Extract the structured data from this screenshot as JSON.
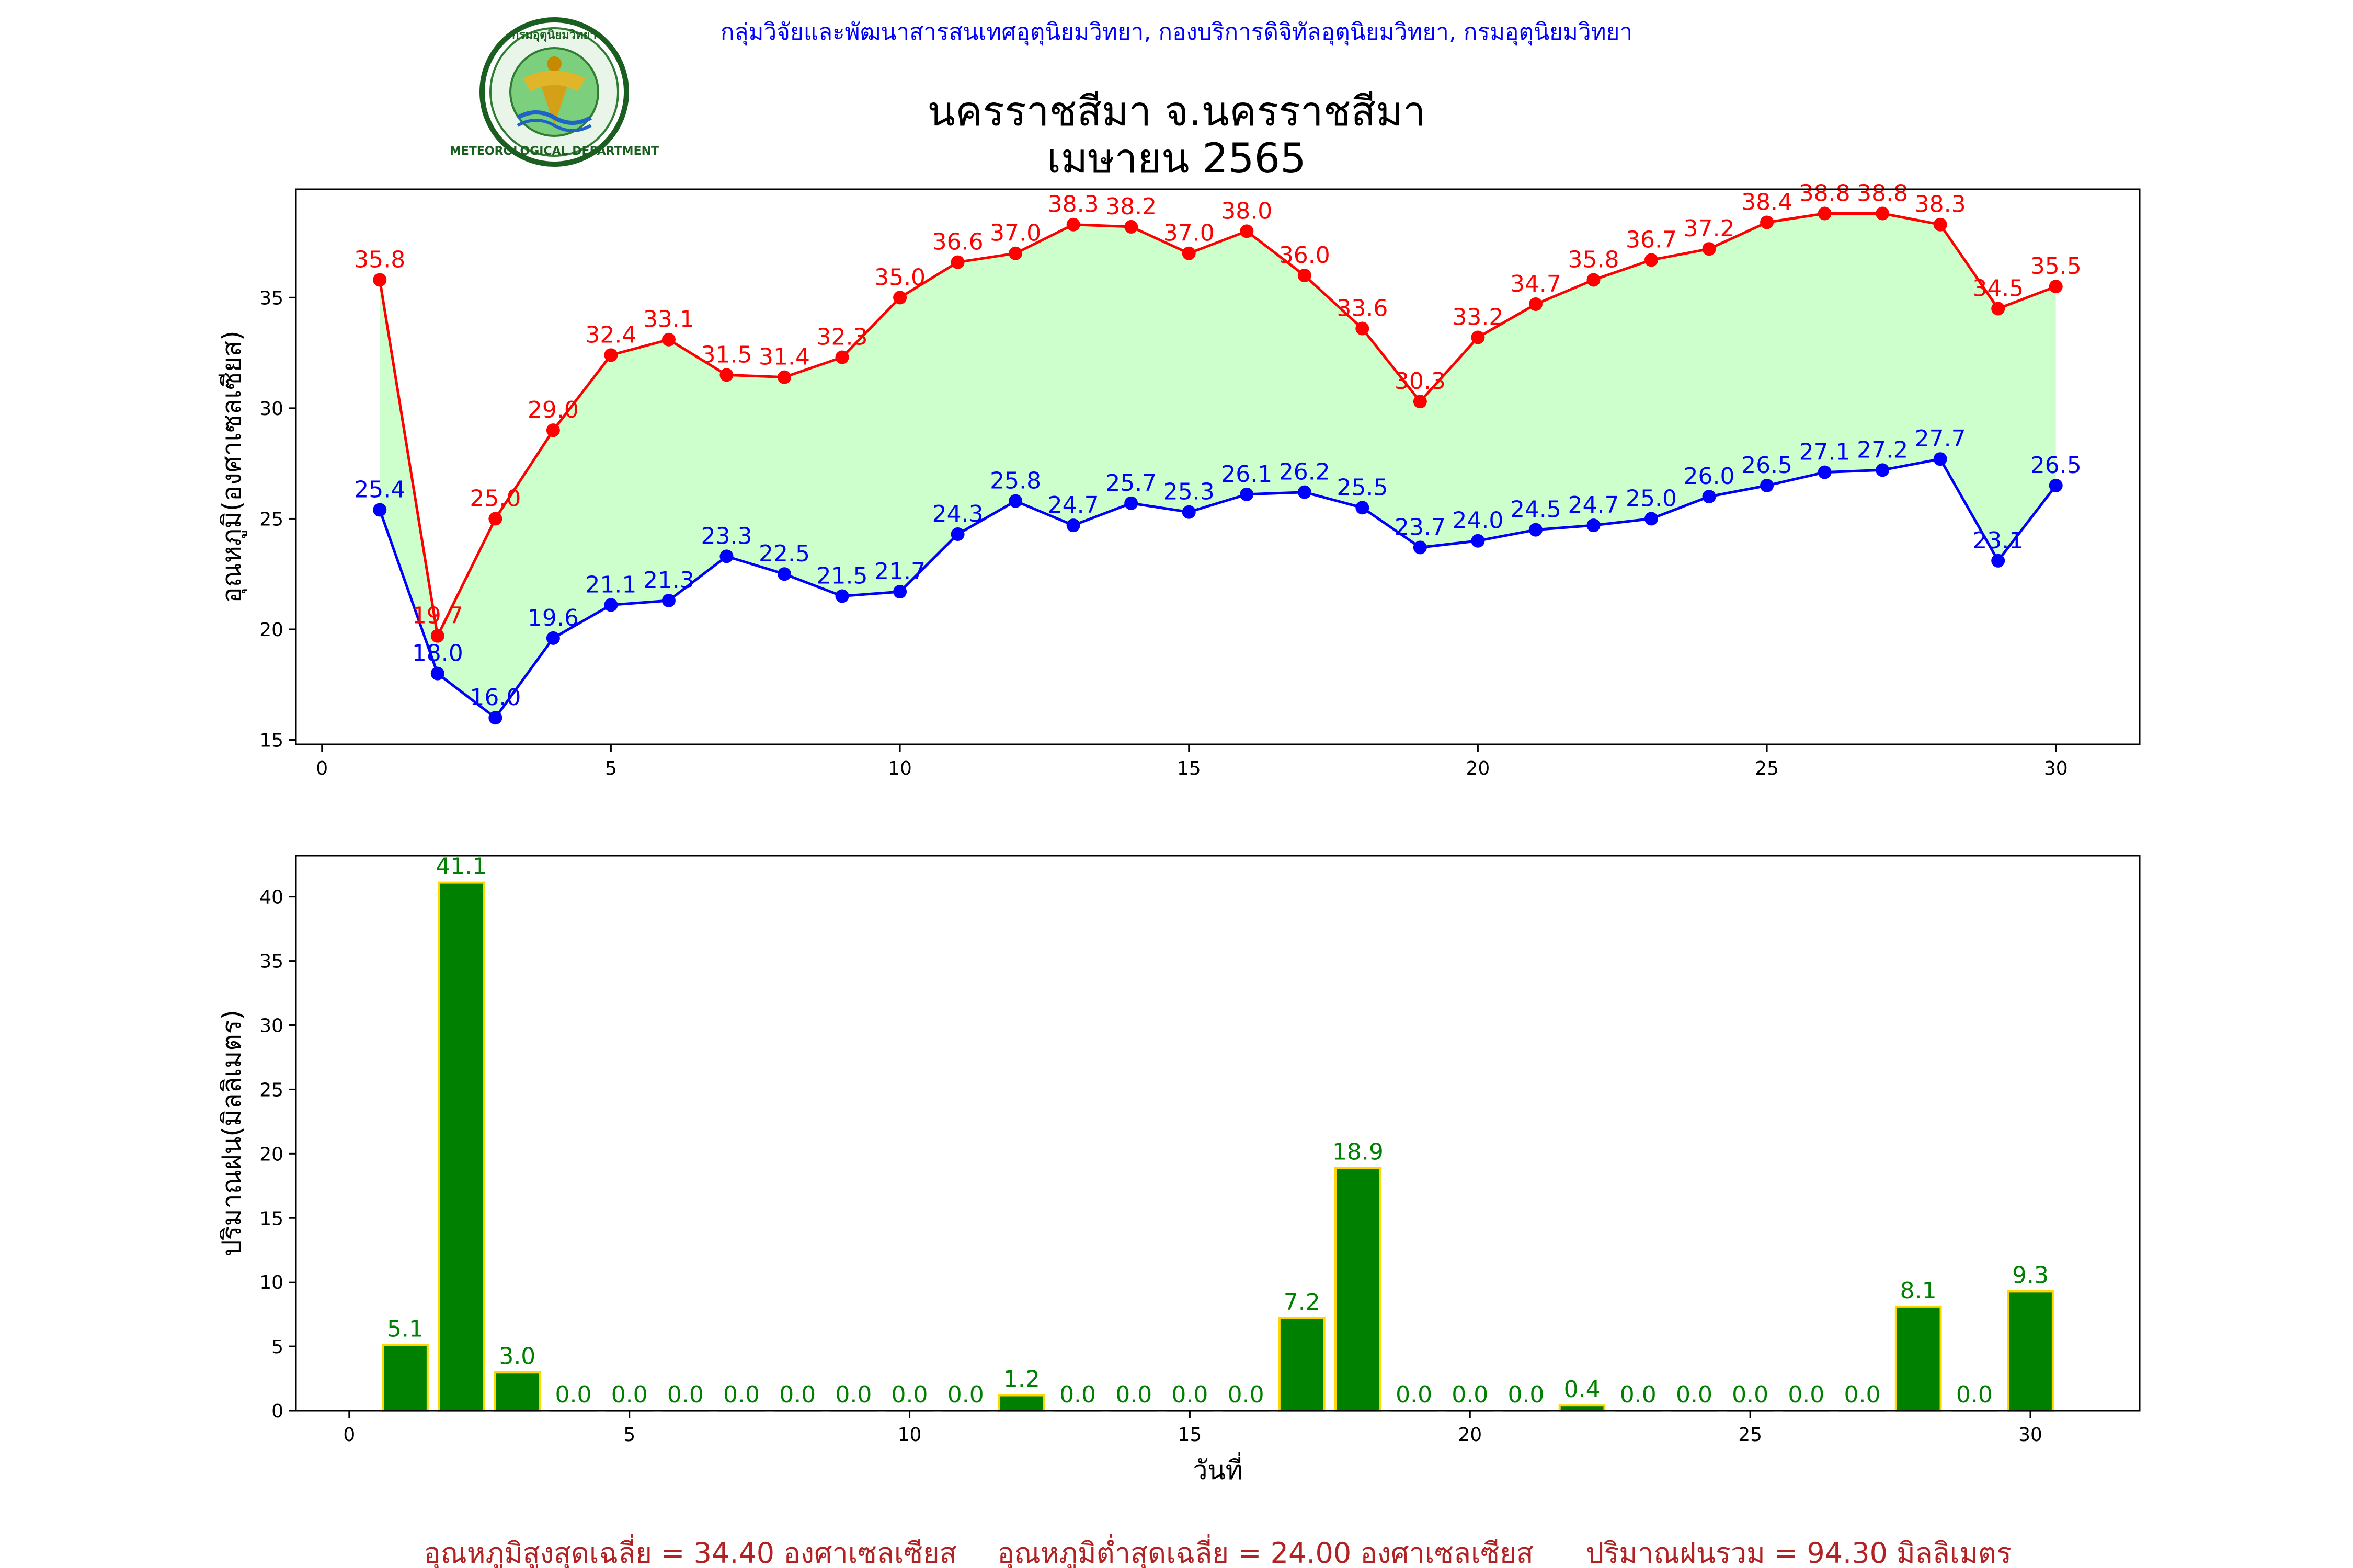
{
  "header": {
    "credit": "กลุ่มวิจัยและพัฒนาสารสนเทศอุตุนิยมวิทยา, กองบริการดิจิทัลอุตุนิยมวิทยา, กรมอุตุนิยมวิทยา",
    "logo_text_top": "กรมอุตุนิยมวิทยา",
    "logo_text_bottom": "METEOROLOGICAL DEPARTMENT",
    "title_line1": "นครราชสีมา จ.นครราชสีมา",
    "title_line2": "เมษายน 2565"
  },
  "colors": {
    "max_line": "#ff0000",
    "min_line": "#0000ff",
    "fill_between": "#ccffcc",
    "rain_bar": "#008000",
    "rain_bar_edge": "#ffd700",
    "rain_label": "#008000",
    "header_text": "#0000ff",
    "footer_text": "#b22222"
  },
  "chart_data": [
    {
      "type": "line",
      "title": "นครราชสีมา จ.นครราชสีมา เมษายน 2565",
      "xlabel": "",
      "ylabel": "อุณหภูมิ(องศาเซลเซียส)",
      "xlim": [
        -0.45,
        31.45
      ],
      "ylim": [
        14.8,
        39.9
      ],
      "xticks": [
        0,
        5,
        10,
        15,
        20,
        25,
        30
      ],
      "yticks": [
        15,
        20,
        25,
        30,
        35
      ],
      "x": [
        1,
        2,
        3,
        4,
        5,
        6,
        7,
        8,
        9,
        10,
        11,
        12,
        13,
        14,
        15,
        16,
        17,
        18,
        19,
        20,
        21,
        22,
        23,
        24,
        25,
        26,
        27,
        28,
        29,
        30
      ],
      "fill_between": true,
      "series": [
        {
          "values": [
            35.8,
            19.7,
            25.0,
            29.0,
            32.4,
            33.1,
            31.5,
            31.4,
            32.3,
            35.0,
            36.6,
            37.0,
            38.3,
            38.2,
            37.0,
            38.0,
            36.0,
            33.6,
            30.3,
            33.2,
            34.7,
            35.8,
            36.7,
            37.2,
            38.4,
            38.8,
            38.8,
            38.3,
            34.5,
            35.5
          ],
          "labels": [
            "35.8",
            "19.7",
            "25.0",
            "29.0",
            "32.4",
            "33.1",
            "31.5",
            "31.4",
            "32.3",
            "35.0",
            "36.6",
            "37.0",
            "38.3",
            "38.2",
            "37.0",
            "38.0",
            "36.0",
            "33.6",
            "30.3",
            "33.2",
            "34.7",
            "35.8",
            "36.7",
            "37.2",
            "38.4",
            "38.8",
            "38.8",
            "38.3",
            "34.5",
            "35.5"
          ]
        },
        {
          "values": [
            25.4,
            18.0,
            16.0,
            19.6,
            21.1,
            21.3,
            23.3,
            22.5,
            21.5,
            21.7,
            24.3,
            25.8,
            24.7,
            25.7,
            25.3,
            26.1,
            26.2,
            25.5,
            23.7,
            24.0,
            24.5,
            24.7,
            25.0,
            26.0,
            26.5,
            27.1,
            27.2,
            27.7,
            23.1,
            26.5
          ],
          "labels": [
            "25.4",
            "18.0",
            "16.0",
            "19.6",
            "21.1",
            "21.3",
            "23.3",
            "22.5",
            "21.5",
            "21.7",
            "24.3",
            "25.8",
            "24.7",
            "25.7",
            "25.3",
            "26.1",
            "26.2",
            "25.5",
            "23.7",
            "24.0",
            "24.5",
            "24.7",
            "25.0",
            "26.0",
            "26.5",
            "27.1",
            "27.2",
            "27.7",
            "23.1",
            "26.5"
          ]
        }
      ]
    },
    {
      "type": "bar",
      "xlabel": "วันที่",
      "ylabel": "ปริมาณฝน(มิลลิเมตร)",
      "xlim": [
        -0.95,
        31.95
      ],
      "ylim": [
        0,
        43.2
      ],
      "xticks": [
        0,
        5,
        10,
        15,
        20,
        25,
        30
      ],
      "yticks": [
        0,
        5,
        10,
        15,
        20,
        25,
        30,
        35,
        40
      ],
      "x": [
        1,
        2,
        3,
        4,
        5,
        6,
        7,
        8,
        9,
        10,
        11,
        12,
        13,
        14,
        15,
        16,
        17,
        18,
        19,
        20,
        21,
        22,
        23,
        24,
        25,
        26,
        27,
        28,
        29,
        30
      ],
      "values": [
        5.1,
        41.1,
        3.0,
        0.0,
        0.0,
        0.0,
        0.0,
        0.0,
        0.0,
        0.0,
        0.0,
        1.2,
        0.0,
        0.0,
        0.0,
        0.0,
        7.2,
        18.9,
        0.0,
        0.0,
        0.0,
        0.4,
        0.0,
        0.0,
        0.0,
        0.0,
        0.0,
        8.1,
        0.0,
        9.3
      ],
      "labels": [
        "5.1",
        "41.1",
        "3.0",
        "0.0",
        "0.0",
        "0.0",
        "0.0",
        "0.0",
        "0.0",
        "0.0",
        "0.0",
        "1.2",
        "0.0",
        "0.0",
        "0.0",
        "0.0",
        "7.2",
        "18.9",
        "0.0",
        "0.0",
        "0.0",
        "0.4",
        "0.0",
        "0.0",
        "0.0",
        "0.0",
        "0.0",
        "8.1",
        "0.0",
        "9.3"
      ]
    }
  ],
  "footer": {
    "avg_max": "อุณหภูมิสูงสุดเฉลี่ย = 34.40 องศาเซลเซียส",
    "avg_min": "อุณหภูมิต่ำสุดเฉลี่ย = 24.00 องศาเซลเซียส",
    "total_rain": "ปริมาณฝนรวม = 94.30 มิลลิเมตร"
  }
}
